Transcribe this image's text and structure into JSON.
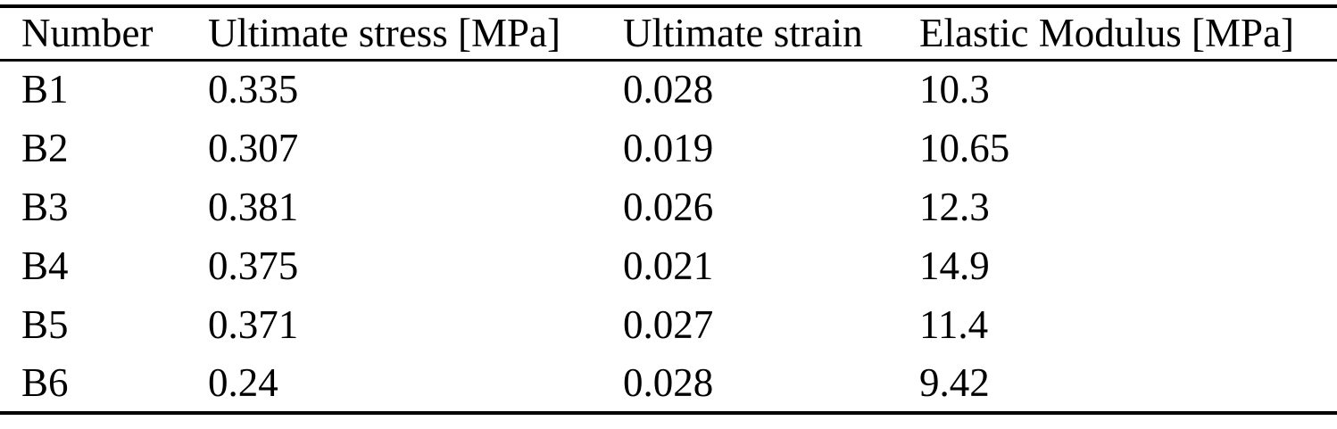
{
  "table": {
    "columns": [
      {
        "label": "Number"
      },
      {
        "label": "Ultimate stress [MPa]"
      },
      {
        "label": "Ultimate strain"
      },
      {
        "label": "Elastic Modulus [MPa]"
      }
    ],
    "rows": [
      [
        "B1",
        "0.335",
        "0.028",
        "10.3"
      ],
      [
        "B2",
        "0.307",
        "0.019",
        "10.65"
      ],
      [
        "B3",
        "0.381",
        "0.026",
        "12.3"
      ],
      [
        "B4",
        "0.375",
        "0.021",
        "14.9"
      ],
      [
        "B5",
        "0.371",
        "0.027",
        "11.4"
      ],
      [
        "B6",
        "0.24",
        "0.028",
        "9.42"
      ]
    ]
  },
  "colors": {
    "text": "#000000",
    "background": "#ffffff",
    "rule": "#000000"
  }
}
